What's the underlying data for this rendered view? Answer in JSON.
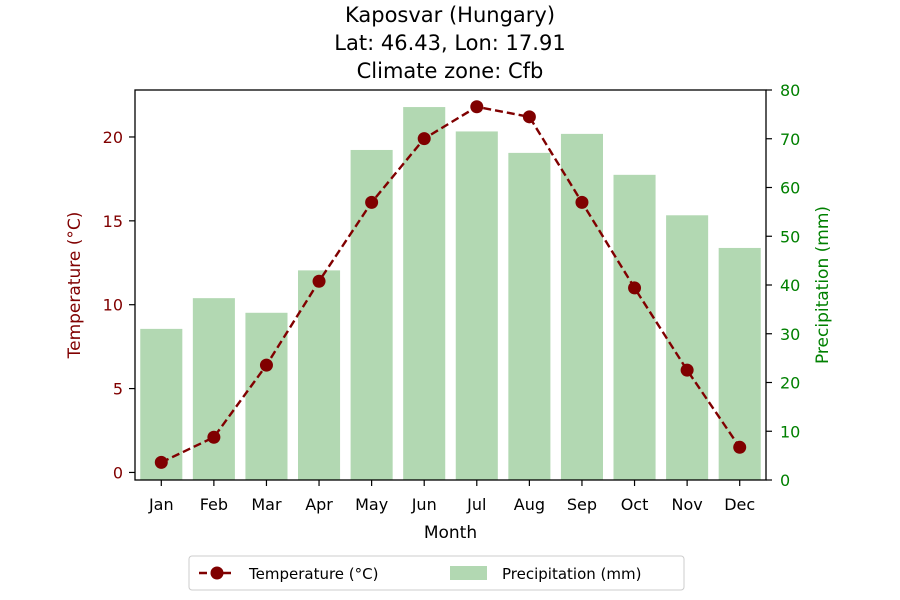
{
  "chart_data": {
    "type": "bar+line",
    "title_lines": [
      "Kaposvar (Hungary)",
      "Lat: 46.43, Lon: 17.91",
      "Climate zone: Cfb"
    ],
    "xlabel": "Month",
    "ylabel_left": "Temperature (°C)",
    "ylabel_right": "Precipitation (mm)",
    "categories": [
      "Jan",
      "Feb",
      "Mar",
      "Apr",
      "May",
      "Jun",
      "Jul",
      "Aug",
      "Sep",
      "Oct",
      "Nov",
      "Dec"
    ],
    "temperature": {
      "name": "Temperature (°C)",
      "values": [
        0.6,
        2.1,
        6.4,
        11.4,
        16.1,
        19.9,
        21.8,
        21.2,
        16.1,
        11.0,
        6.1,
        1.5
      ],
      "ylim": [
        -0.45,
        22.8
      ],
      "yticks": [
        0,
        5,
        10,
        15,
        20
      ],
      "color": "#800000"
    },
    "precipitation": {
      "name": "Precipitation (mm)",
      "values": [
        31,
        37.3,
        34.3,
        43,
        67.7,
        76.5,
        71.5,
        67.1,
        71,
        62.6,
        54.3,
        47.6
      ],
      "ylim": [
        0,
        80
      ],
      "yticks": [
        0,
        10,
        20,
        30,
        40,
        50,
        60,
        70,
        80
      ],
      "color": "#b2d8b2"
    },
    "left_axis_color": "#800000",
    "right_axis_color": "#008000",
    "legend_position": "bottom-center"
  }
}
